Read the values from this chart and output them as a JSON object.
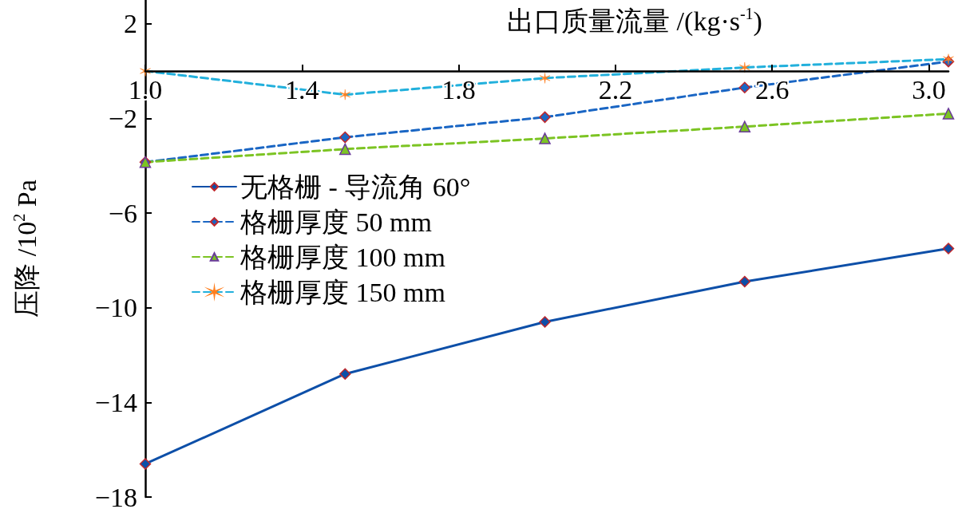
{
  "chart_data": {
    "type": "line",
    "xlabel": "出口质量流量 /(kg·s$^{-1}$)",
    "ylabel": "压降 /10$^{2}$ Pa",
    "x": [
      1.0,
      1.51,
      2.02,
      2.53,
      3.05
    ],
    "series": [
      {
        "name": "无格栅 - 导流角 60°",
        "color": "#0d4fa8",
        "line_style": "solid",
        "marker": "diamond",
        "values": [
          -16.6,
          -12.8,
          -10.6,
          -8.9,
          -7.5
        ]
      },
      {
        "name": "格栅厚度 50 mm",
        "color": "#1a66c4",
        "line_style": "dashed",
        "marker": "diamond",
        "values": [
          -3.85,
          -2.8,
          -1.95,
          -0.7,
          0.4
        ]
      },
      {
        "name": "格栅厚度 100 mm",
        "color": "#7cc423",
        "line_style": "dashed",
        "marker": "triangle",
        "values": [
          -3.85,
          -3.3,
          -2.85,
          -2.35,
          -1.8
        ]
      },
      {
        "name": "格栅厚度 150 mm",
        "color": "#22b0dc",
        "line_style": "dashed",
        "marker": "cross",
        "values": [
          0,
          -1.0,
          -0.3,
          0.15,
          0.5
        ]
      }
    ],
    "xlim": [
      1.0,
      3.05
    ],
    "xticks": [
      {
        "value": 1,
        "label": "1.0"
      },
      1.4,
      1.8,
      2.2,
      2.6,
      {
        "value": 3,
        "label": "3.0"
      }
    ],
    "ylim": [
      -18,
      3
    ],
    "yticks": [
      {
        "value": -18,
        "label": "−18"
      },
      {
        "value": -14,
        "label": "−14"
      },
      {
        "value": -10,
        "label": "−10"
      },
      {
        "value": -6,
        "label": "−6"
      },
      {
        "value": -2,
        "label": "−2"
      },
      {
        "value": 2,
        "label": "2"
      }
    ],
    "grid": false,
    "legend": "left"
  }
}
